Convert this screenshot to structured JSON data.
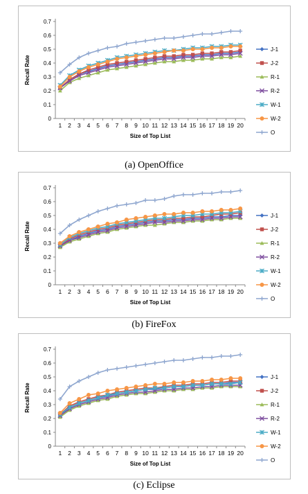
{
  "legend_labels": [
    "J-1",
    "J-2",
    "R-1",
    "R-2",
    "W-1",
    "W-2",
    "O"
  ],
  "series_colors": [
    "#4472c4",
    "#c0504d",
    "#9bbb59",
    "#7f4f9f",
    "#4bacc6",
    "#f79646",
    "#8ea6cf"
  ],
  "captions": [
    "(a) OpenOffice",
    "(b) FireFox",
    "(c) Eclipse"
  ],
  "chart_data": [
    {
      "type": "line",
      "xlabel": "Size of Top List",
      "ylabel": "Recall Rate",
      "ylim": [
        0,
        0.7
      ],
      "x": [
        1,
        2,
        3,
        4,
        5,
        6,
        7,
        8,
        9,
        10,
        11,
        12,
        13,
        14,
        15,
        16,
        17,
        18,
        19,
        20
      ],
      "series": [
        {
          "name": "J-1",
          "values": [
            0.22,
            0.28,
            0.32,
            0.34,
            0.36,
            0.38,
            0.39,
            0.4,
            0.41,
            0.42,
            0.43,
            0.44,
            0.44,
            0.45,
            0.45,
            0.46,
            0.46,
            0.47,
            0.47,
            0.48
          ]
        },
        {
          "name": "J-2",
          "values": [
            0.22,
            0.28,
            0.32,
            0.35,
            0.37,
            0.39,
            0.4,
            0.41,
            0.42,
            0.43,
            0.44,
            0.45,
            0.45,
            0.46,
            0.46,
            0.47,
            0.47,
            0.48,
            0.48,
            0.49
          ]
        },
        {
          "name": "R-1",
          "values": [
            0.2,
            0.26,
            0.29,
            0.31,
            0.33,
            0.35,
            0.36,
            0.37,
            0.38,
            0.39,
            0.4,
            0.41,
            0.41,
            0.42,
            0.42,
            0.43,
            0.43,
            0.44,
            0.44,
            0.45
          ]
        },
        {
          "name": "R-2",
          "values": [
            0.22,
            0.27,
            0.31,
            0.33,
            0.35,
            0.37,
            0.38,
            0.39,
            0.4,
            0.41,
            0.42,
            0.43,
            0.43,
            0.44,
            0.44,
            0.45,
            0.45,
            0.46,
            0.46,
            0.47
          ]
        },
        {
          "name": "W-1",
          "values": [
            0.24,
            0.31,
            0.35,
            0.38,
            0.4,
            0.42,
            0.44,
            0.45,
            0.46,
            0.47,
            0.48,
            0.49,
            0.49,
            0.5,
            0.51,
            0.51,
            0.52,
            0.52,
            0.53,
            0.53
          ]
        },
        {
          "name": "W-2",
          "values": [
            0.23,
            0.3,
            0.34,
            0.37,
            0.39,
            0.41,
            0.43,
            0.44,
            0.45,
            0.46,
            0.47,
            0.48,
            0.49,
            0.49,
            0.5,
            0.5,
            0.51,
            0.51,
            0.52,
            0.52
          ]
        },
        {
          "name": "O",
          "values": [
            0.33,
            0.39,
            0.44,
            0.47,
            0.49,
            0.51,
            0.52,
            0.54,
            0.55,
            0.56,
            0.57,
            0.58,
            0.58,
            0.59,
            0.6,
            0.61,
            0.61,
            0.62,
            0.63,
            0.63
          ]
        }
      ]
    },
    {
      "type": "line",
      "xlabel": "Size of Top List",
      "ylabel": "Recall Rate",
      "ylim": [
        0,
        0.7
      ],
      "x": [
        1,
        2,
        3,
        4,
        5,
        6,
        7,
        8,
        9,
        10,
        11,
        12,
        13,
        14,
        15,
        16,
        17,
        18,
        19,
        20
      ],
      "series": [
        {
          "name": "J-1",
          "values": [
            0.28,
            0.32,
            0.35,
            0.37,
            0.39,
            0.4,
            0.42,
            0.43,
            0.44,
            0.45,
            0.46,
            0.46,
            0.47,
            0.47,
            0.48,
            0.48,
            0.49,
            0.49,
            0.5,
            0.5
          ]
        },
        {
          "name": "J-2",
          "values": [
            0.28,
            0.33,
            0.36,
            0.38,
            0.4,
            0.41,
            0.43,
            0.44,
            0.45,
            0.46,
            0.47,
            0.47,
            0.48,
            0.48,
            0.49,
            0.49,
            0.5,
            0.51,
            0.51,
            0.52
          ]
        },
        {
          "name": "R-1",
          "values": [
            0.27,
            0.31,
            0.33,
            0.35,
            0.37,
            0.38,
            0.4,
            0.41,
            0.42,
            0.43,
            0.43,
            0.44,
            0.45,
            0.45,
            0.46,
            0.46,
            0.47,
            0.47,
            0.48,
            0.48
          ]
        },
        {
          "name": "R-2",
          "values": [
            0.28,
            0.32,
            0.34,
            0.36,
            0.38,
            0.39,
            0.41,
            0.42,
            0.43,
            0.44,
            0.45,
            0.45,
            0.46,
            0.46,
            0.47,
            0.47,
            0.48,
            0.48,
            0.49,
            0.49
          ]
        },
        {
          "name": "W-1",
          "values": [
            0.29,
            0.34,
            0.37,
            0.39,
            0.41,
            0.42,
            0.44,
            0.45,
            0.46,
            0.47,
            0.48,
            0.48,
            0.49,
            0.5,
            0.5,
            0.51,
            0.51,
            0.52,
            0.52,
            0.53
          ]
        },
        {
          "name": "W-2",
          "values": [
            0.3,
            0.35,
            0.38,
            0.4,
            0.42,
            0.44,
            0.45,
            0.47,
            0.48,
            0.49,
            0.5,
            0.51,
            0.51,
            0.52,
            0.52,
            0.53,
            0.53,
            0.54,
            0.54,
            0.55
          ]
        },
        {
          "name": "O",
          "values": [
            0.37,
            0.43,
            0.47,
            0.5,
            0.53,
            0.55,
            0.57,
            0.58,
            0.59,
            0.61,
            0.61,
            0.62,
            0.64,
            0.65,
            0.65,
            0.66,
            0.66,
            0.67,
            0.67,
            0.68
          ]
        }
      ]
    },
    {
      "type": "line",
      "xlabel": "Size of Top List",
      "ylabel": "Recall Rate",
      "ylim": [
        0,
        0.7
      ],
      "x": [
        1,
        2,
        3,
        4,
        5,
        6,
        7,
        8,
        9,
        10,
        11,
        12,
        13,
        14,
        15,
        16,
        17,
        18,
        19,
        20
      ],
      "series": [
        {
          "name": "J-1",
          "values": [
            0.22,
            0.28,
            0.31,
            0.33,
            0.35,
            0.36,
            0.38,
            0.39,
            0.4,
            0.41,
            0.41,
            0.42,
            0.43,
            0.43,
            0.44,
            0.44,
            0.45,
            0.45,
            0.46,
            0.46
          ]
        },
        {
          "name": "J-2",
          "values": [
            0.23,
            0.29,
            0.32,
            0.34,
            0.36,
            0.37,
            0.39,
            0.4,
            0.41,
            0.42,
            0.42,
            0.43,
            0.44,
            0.44,
            0.45,
            0.45,
            0.46,
            0.46,
            0.47,
            0.47
          ]
        },
        {
          "name": "R-1",
          "values": [
            0.21,
            0.26,
            0.29,
            0.31,
            0.33,
            0.34,
            0.36,
            0.37,
            0.38,
            0.38,
            0.39,
            0.4,
            0.4,
            0.41,
            0.41,
            0.42,
            0.42,
            0.43,
            0.43,
            0.43
          ]
        },
        {
          "name": "R-2",
          "values": [
            0.22,
            0.27,
            0.3,
            0.32,
            0.34,
            0.35,
            0.37,
            0.38,
            0.39,
            0.39,
            0.4,
            0.41,
            0.41,
            0.42,
            0.42,
            0.43,
            0.43,
            0.44,
            0.44,
            0.44
          ]
        },
        {
          "name": "W-1",
          "values": [
            0.23,
            0.28,
            0.31,
            0.33,
            0.35,
            0.37,
            0.38,
            0.39,
            0.4,
            0.41,
            0.42,
            0.42,
            0.43,
            0.43,
            0.44,
            0.44,
            0.45,
            0.45,
            0.45,
            0.46
          ]
        },
        {
          "name": "W-2",
          "values": [
            0.24,
            0.31,
            0.34,
            0.37,
            0.38,
            0.4,
            0.41,
            0.42,
            0.43,
            0.44,
            0.45,
            0.45,
            0.46,
            0.46,
            0.47,
            0.47,
            0.48,
            0.48,
            0.49,
            0.49
          ]
        },
        {
          "name": "O",
          "values": [
            0.34,
            0.43,
            0.47,
            0.5,
            0.53,
            0.55,
            0.56,
            0.57,
            0.58,
            0.59,
            0.6,
            0.61,
            0.62,
            0.62,
            0.63,
            0.64,
            0.64,
            0.65,
            0.65,
            0.66
          ]
        }
      ]
    }
  ]
}
